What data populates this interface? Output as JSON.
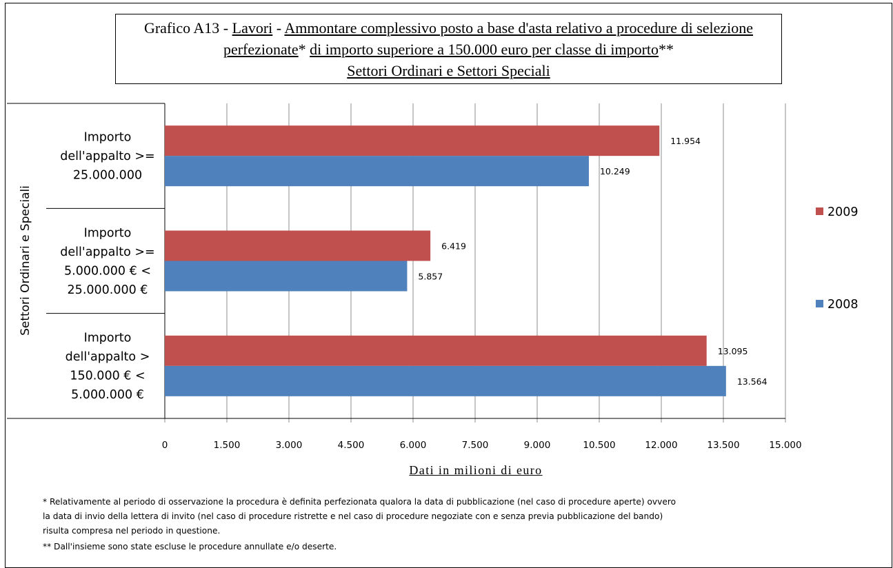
{
  "chart_data": {
    "type": "bar",
    "orientation": "horizontal",
    "title": {
      "prefix": "Grafico  A13 - ",
      "part1": "Lavori",
      "sep": " - ",
      "part2": "Ammontare complessivo posto a base d'asta relativo a procedure di selezione perfezionate",
      "star1": "* ",
      "part3": "di importo superiore a 150.000 euro per classe di importo",
      "star2": "**",
      "line3": "Settori Ordinari e Settori Speciali"
    },
    "ylabel": "Settori Ordinari e Speciali",
    "xlabel": "Dati in milioni di euro",
    "categories": [
      [
        "Importo",
        "dell'appalto >=",
        "25.000.000"
      ],
      [
        "Importo",
        "dell'appalto >=",
        "5.000.000 €  <",
        "25.000.000 €"
      ],
      [
        "Importo",
        "dell'appalto >",
        "150.000 € <",
        "5.000.000 €"
      ]
    ],
    "series": [
      {
        "name": "2009",
        "color": "#c0504d",
        "values": [
          11954,
          6419,
          13095
        ],
        "labels": [
          "11.954",
          "6.419",
          "13.095"
        ]
      },
      {
        "name": "2008",
        "color": "#4f81bd",
        "values": [
          10249,
          5857,
          13564
        ],
        "labels": [
          "10.249",
          "5.857",
          "13.564"
        ]
      }
    ],
    "xlim": [
      0,
      15000
    ],
    "xticks": [
      "0",
      "1.500",
      "3.000",
      "4.500",
      "6.000",
      "7.500",
      "9.000",
      "10.500",
      "12.000",
      "13.500",
      "15.000"
    ],
    "grid": true,
    "legend": "right"
  },
  "notes": [
    "* Relativamente al periodo di osservazione la procedura è definita perfezionata qualora la data di pubblicazione (nel caso di procedure aperte) ovvero",
    "la data di invio della lettera di invito (nel caso di procedure ristrette e nel caso di procedure negoziate con e senza previa pubblicazione del bando)",
    "risulta compresa nel periodo in questione.",
    "** Dall'insieme sono state escluse le procedure annullate e/o deserte."
  ]
}
